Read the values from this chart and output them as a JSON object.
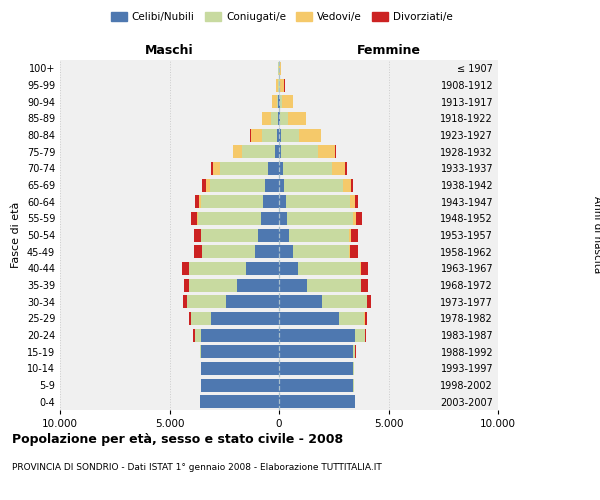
{
  "age_groups": [
    "0-4",
    "5-9",
    "10-14",
    "15-19",
    "20-24",
    "25-29",
    "30-34",
    "35-39",
    "40-44",
    "45-49",
    "50-54",
    "55-59",
    "60-64",
    "65-69",
    "70-74",
    "75-79",
    "80-84",
    "85-89",
    "90-94",
    "95-99",
    "100+"
  ],
  "birth_years": [
    "2003-2007",
    "1998-2002",
    "1993-1997",
    "1988-1992",
    "1983-1987",
    "1978-1982",
    "1973-1977",
    "1968-1972",
    "1963-1967",
    "1958-1962",
    "1953-1957",
    "1948-1952",
    "1943-1947",
    "1938-1942",
    "1933-1937",
    "1928-1932",
    "1923-1927",
    "1918-1922",
    "1913-1917",
    "1908-1912",
    "≤ 1907"
  ],
  "colors": {
    "celibi": "#4e78b0",
    "coniugati": "#c8daa0",
    "vedovi": "#f5c96a",
    "divorziati": "#cc2222"
  },
  "maschi": {
    "celibi": [
      3600,
      3550,
      3550,
      3550,
      3550,
      3100,
      2400,
      1900,
      1500,
      1100,
      950,
      800,
      750,
      650,
      480,
      180,
      90,
      55,
      30,
      20,
      10
    ],
    "coniugati": [
      5,
      5,
      10,
      50,
      300,
      900,
      1800,
      2200,
      2600,
      2400,
      2600,
      2900,
      2800,
      2500,
      2200,
      1500,
      700,
      300,
      80,
      30,
      20
    ],
    "vedovi": [
      5,
      5,
      5,
      5,
      5,
      5,
      5,
      5,
      10,
      20,
      30,
      50,
      100,
      200,
      350,
      400,
      500,
      400,
      200,
      80,
      20
    ],
    "divorziati": [
      5,
      5,
      5,
      20,
      50,
      100,
      200,
      250,
      300,
      350,
      300,
      250,
      200,
      150,
      80,
      30,
      20,
      20,
      10,
      10,
      5
    ]
  },
  "femmine": {
    "celibi": [
      3450,
      3400,
      3400,
      3400,
      3450,
      2750,
      1950,
      1300,
      850,
      650,
      450,
      350,
      300,
      250,
      180,
      110,
      70,
      45,
      30,
      20,
      10
    ],
    "coniugati": [
      5,
      5,
      10,
      80,
      480,
      1150,
      2050,
      2450,
      2850,
      2550,
      2750,
      3050,
      2950,
      2650,
      2250,
      1650,
      850,
      380,
      90,
      30,
      10
    ],
    "vedovi": [
      5,
      5,
      5,
      5,
      5,
      10,
      10,
      15,
      30,
      50,
      80,
      100,
      200,
      400,
      600,
      800,
      1000,
      800,
      500,
      200,
      60
    ],
    "divorziati": [
      5,
      5,
      5,
      20,
      50,
      100,
      200,
      300,
      350,
      350,
      350,
      300,
      150,
      100,
      60,
      30,
      20,
      15,
      10,
      10,
      5
    ]
  },
  "xlim": 10000,
  "xticks": [
    -10000,
    -5000,
    0,
    5000,
    10000
  ],
  "xticklabels": [
    "10.000",
    "5.000",
    "0",
    "5.000",
    "10.000"
  ],
  "title": "Popolazione per età, sesso e stato civile - 2008",
  "subtitle": "PROVINCIA DI SONDRIO - Dati ISTAT 1° gennaio 2008 - Elaborazione TUTTITALIA.IT",
  "ylabel_left": "Fasce di età",
  "ylabel_right": "Anni di nascita",
  "label_maschi": "Maschi",
  "label_femmine": "Femmine",
  "legend_labels": [
    "Celibi/Nubili",
    "Coniugati/e",
    "Vedovi/e",
    "Divorziati/e"
  ],
  "background_color": "#f0f0f0",
  "plot_background": "#ffffff",
  "grid_color": "#cccccc"
}
